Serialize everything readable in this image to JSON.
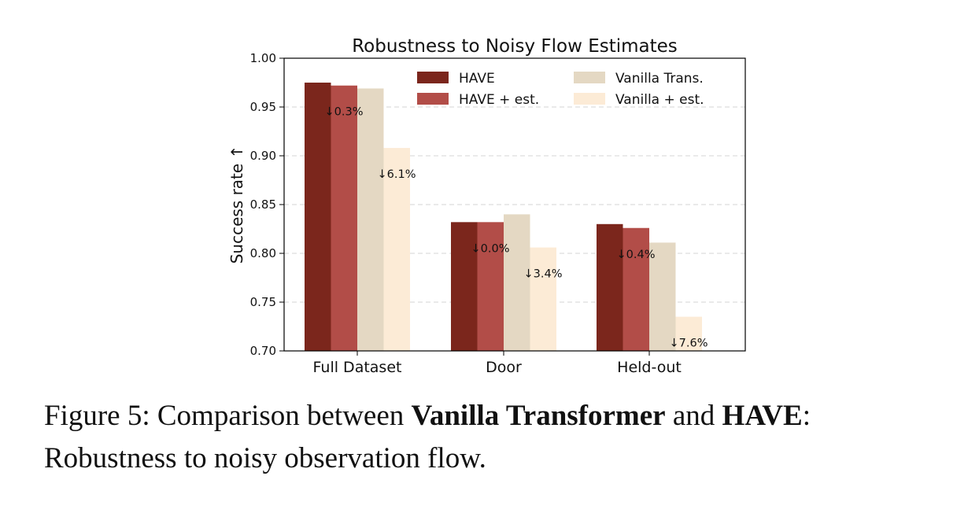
{
  "chart_data": {
    "type": "bar",
    "title": "Robustness to Noisy Flow Estimates",
    "xlabel": "",
    "ylabel": "Success rate ↑",
    "ylim": [
      0.7,
      1.0
    ],
    "yticks": [
      "0.70",
      "0.75",
      "0.80",
      "0.85",
      "0.90",
      "0.95",
      "1.00"
    ],
    "grid": "horizontal-dashed",
    "legend_position": "top-right",
    "categories": [
      "Full Dataset",
      "Door",
      "Held-out"
    ],
    "series": [
      {
        "name": "HAVE",
        "color": "#7b261c",
        "values": [
          0.975,
          0.832,
          0.83
        ]
      },
      {
        "name": "HAVE + est.",
        "color": "#b24d48",
        "values": [
          0.972,
          0.832,
          0.826
        ]
      },
      {
        "name": "Vanilla Trans.",
        "color": "#e4d8c3",
        "values": [
          0.969,
          0.84,
          0.811
        ]
      },
      {
        "name": "Vanilla + est.",
        "color": "#fcebd6",
        "values": [
          0.908,
          0.806,
          0.735
        ]
      }
    ],
    "annotations": [
      {
        "category": "Full Dataset",
        "series": "HAVE + est.",
        "text": "↓0.3%"
      },
      {
        "category": "Full Dataset",
        "series": "Vanilla + est.",
        "text": "↓6.1%"
      },
      {
        "category": "Door",
        "series": "HAVE + est.",
        "text": "↓0.0%"
      },
      {
        "category": "Door",
        "series": "Vanilla + est.",
        "text": "↓3.4%"
      },
      {
        "category": "Held-out",
        "series": "HAVE + est.",
        "text": "↓0.4%"
      },
      {
        "category": "Held-out",
        "series": "Vanilla + est.",
        "text": "↓7.6%"
      }
    ]
  },
  "caption": {
    "prefix": "Figure 5: Comparison between ",
    "bold1": "Vanilla Transformer",
    "middle": " and ",
    "bold2": "HAVE",
    "suffix": ": Robustness to noisy observation flow."
  }
}
